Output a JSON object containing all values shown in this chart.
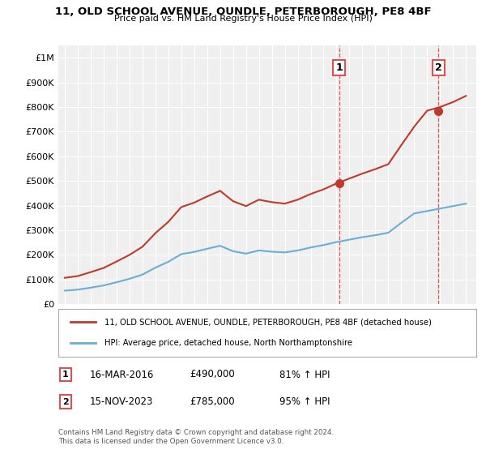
{
  "title": "11, OLD SCHOOL AVENUE, OUNDLE, PETERBOROUGH, PE8 4BF",
  "subtitle": "Price paid vs. HM Land Registry's House Price Index (HPI)",
  "ylabel_ticks": [
    "£0",
    "£100K",
    "£200K",
    "£300K",
    "£400K",
    "£500K",
    "£600K",
    "£700K",
    "£800K",
    "£900K",
    "£1M"
  ],
  "ytick_values": [
    0,
    100000,
    200000,
    300000,
    400000,
    500000,
    600000,
    700000,
    800000,
    900000,
    1000000
  ],
  "ylim": [
    0,
    1050000
  ],
  "xlim_start": 1994.5,
  "xlim_end": 2026.8,
  "sale1_x": 2016.21,
  "sale1_price": 490000,
  "sale2_x": 2023.88,
  "sale2_price": 785000,
  "red_color": "#c0392b",
  "blue_color": "#6aaed6",
  "dashed_color": "#e05050",
  "legend_label1": "11, OLD SCHOOL AVENUE, OUNDLE, PETERBOROUGH, PE8 4BF (detached house)",
  "legend_label2": "HPI: Average price, detached house, North Northamptonshire",
  "footer": "Contains HM Land Registry data © Crown copyright and database right 2024.\nThis data is licensed under the Open Government Licence v3.0.",
  "background_color": "#ffffff",
  "plot_bg_color": "#efefef",
  "hpi_years": [
    1995,
    1996,
    1997,
    1998,
    1999,
    2000,
    2001,
    2002,
    2003,
    2004,
    2005,
    2006,
    2007,
    2008,
    2009,
    2010,
    2011,
    2012,
    2013,
    2014,
    2015,
    2016,
    2017,
    2018,
    2019,
    2020,
    2021,
    2022,
    2023,
    2024,
    2025,
    2026
  ],
  "hpi_values": [
    55000,
    59000,
    67000,
    76000,
    89000,
    103000,
    120000,
    148000,
    172000,
    203000,
    212000,
    225000,
    237000,
    215000,
    205000,
    218000,
    213000,
    210000,
    218000,
    230000,
    240000,
    252000,
    262000,
    272000,
    280000,
    290000,
    330000,
    368000,
    378000,
    388000,
    398000,
    408000
  ],
  "red_pre_years": [
    1995,
    1996,
    1997,
    1998,
    1999,
    2000,
    2001,
    2002,
    2003,
    2004,
    2005,
    2006,
    2007,
    2008,
    2009,
    2010,
    2011,
    2012,
    2013,
    2014,
    2015,
    2016
  ],
  "red_pre_values": [
    107000,
    114000,
    130000,
    147000,
    173000,
    200000,
    233000,
    288000,
    334000,
    394000,
    412000,
    437000,
    460000,
    418000,
    398000,
    424000,
    414000,
    408000,
    424000,
    447000,
    466000,
    490000
  ],
  "red_post_years": [
    2016,
    2017,
    2018,
    2019,
    2020,
    2021,
    2022,
    2023,
    2024,
    2025,
    2026
  ],
  "red_post_values": [
    490000,
    510000,
    530000,
    548000,
    568000,
    645000,
    720000,
    785000,
    800000,
    820000,
    845000
  ]
}
